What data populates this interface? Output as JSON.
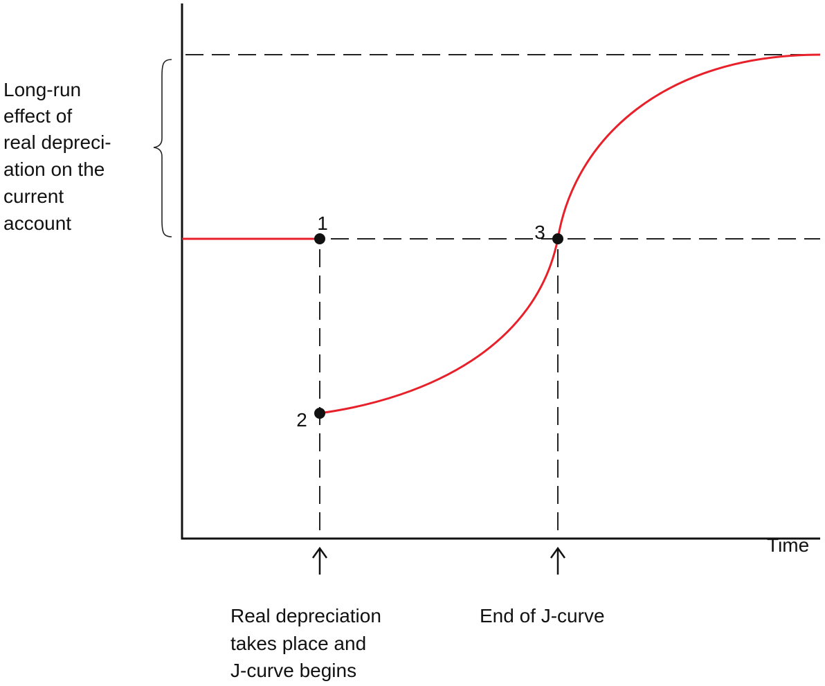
{
  "axis_label": "Time",
  "brace_label": [
    "Long-run",
    "effect of",
    "real depreci-",
    "ation on the",
    "current",
    "account"
  ],
  "points": [
    {
      "label": "1"
    },
    {
      "label": "2"
    },
    {
      "label": "3"
    }
  ],
  "annotations": [
    {
      "lines": [
        "Real depreciation",
        "takes place and",
        "J-curve begins"
      ]
    },
    {
      "lines": [
        "End of J-curve"
      ]
    }
  ]
}
